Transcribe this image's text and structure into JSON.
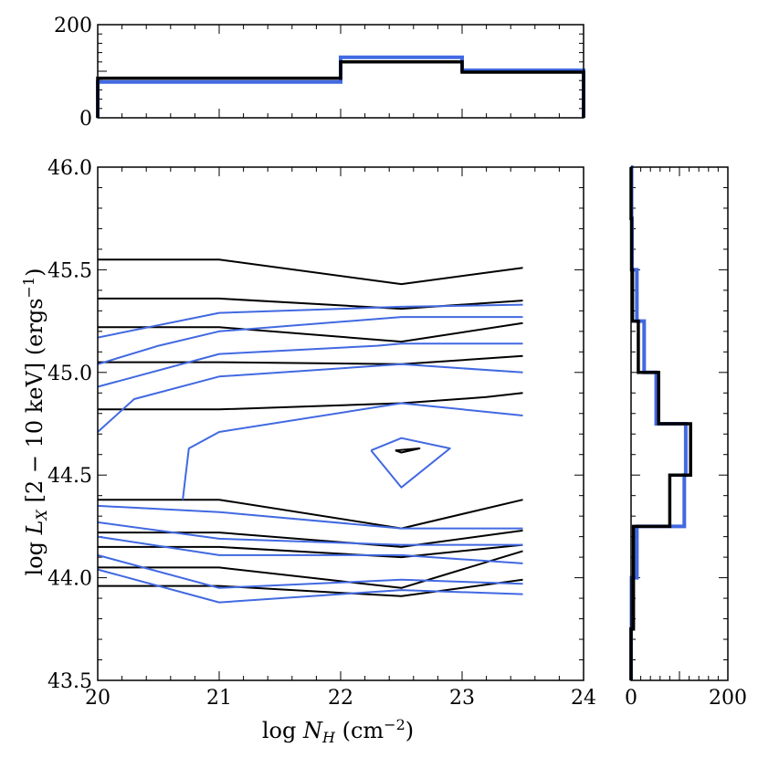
{
  "chart_data": [
    {
      "type": "step-histogram",
      "panel": "top",
      "x_edges": [
        20,
        22,
        23,
        24
      ],
      "ylim": [
        0,
        200
      ],
      "yticks": [
        "0",
        "200"
      ],
      "series": [
        {
          "name": "black",
          "color": "#000000",
          "counts": [
            85,
            120,
            98
          ]
        },
        {
          "name": "blue",
          "color": "#4169e1",
          "counts": [
            77,
            130,
            102
          ]
        }
      ]
    },
    {
      "type": "contour",
      "panel": "main",
      "xlabel": "log N_H (cm^-2)",
      "ylabel": "log L_X [2 - 10 keV] (erg s^-1)",
      "xlim": [
        20,
        24
      ],
      "ylim": [
        43.5,
        46.0
      ],
      "xticks": [
        "20",
        "21",
        "22",
        "23",
        "24"
      ],
      "yticks": [
        "43.5",
        "44.0",
        "44.5",
        "45.0",
        "45.5",
        "46.0"
      ],
      "series": [
        {
          "name": "black",
          "color": "#000000",
          "lines": [
            [
              [
                20,
                45.55
              ],
              [
                21,
                45.55
              ],
              [
                22.5,
                45.43
              ],
              [
                23.5,
                45.51
              ]
            ],
            [
              [
                20,
                45.36
              ],
              [
                21,
                45.36
              ],
              [
                22.5,
                45.31
              ],
              [
                23.5,
                45.35
              ]
            ],
            [
              [
                20,
                45.22
              ],
              [
                21,
                45.22
              ],
              [
                22.5,
                45.15
              ],
              [
                23.5,
                45.24
              ]
            ],
            [
              [
                20,
                45.05
              ],
              [
                21,
                45.05
              ],
              [
                22.5,
                45.04
              ],
              [
                23.5,
                45.08
              ]
            ],
            [
              [
                20,
                44.82
              ],
              [
                21,
                44.82
              ],
              [
                22.5,
                44.85
              ],
              [
                23.2,
                44.88
              ],
              [
                23.5,
                44.9
              ]
            ],
            [
              [
                20,
                44.38
              ],
              [
                21,
                44.38
              ],
              [
                22.5,
                44.24
              ],
              [
                23.5,
                44.38
              ]
            ],
            [
              [
                20,
                44.22
              ],
              [
                21,
                44.22
              ],
              [
                22.5,
                44.15
              ],
              [
                23.5,
                44.23
              ]
            ],
            [
              [
                20,
                44.15
              ],
              [
                21,
                44.15
              ],
              [
                22.5,
                44.1
              ],
              [
                23.5,
                44.16
              ]
            ],
            [
              [
                20,
                44.05
              ],
              [
                21,
                44.05
              ],
              [
                22.5,
                43.95
              ],
              [
                23.5,
                44.13
              ]
            ],
            [
              [
                20,
                43.96
              ],
              [
                21,
                43.96
              ],
              [
                22.5,
                43.91
              ],
              [
                23.5,
                43.99
              ]
            ],
            [
              [
                22.45,
                44.62
              ],
              [
                22.65,
                44.63
              ],
              [
                22.5,
                44.61
              ],
              [
                22.45,
                44.62
              ]
            ]
          ]
        },
        {
          "name": "blue",
          "color": "#4169e1",
          "lines": [
            [
              [
                20,
                45.17
              ],
              [
                21,
                45.29
              ],
              [
                22.5,
                45.32
              ],
              [
                23.5,
                45.33
              ]
            ],
            [
              [
                20,
                45.04
              ],
              [
                20.5,
                45.13
              ],
              [
                21,
                45.2
              ],
              [
                22.5,
                45.27
              ],
              [
                23.5,
                45.27
              ]
            ],
            [
              [
                20,
                44.93
              ],
              [
                21,
                45.09
              ],
              [
                22.3,
                45.13
              ],
              [
                22.5,
                45.14
              ],
              [
                23.5,
                45.14
              ]
            ],
            [
              [
                20,
                44.71
              ],
              [
                20.3,
                44.87
              ],
              [
                21,
                44.98
              ],
              [
                22.5,
                45.04
              ],
              [
                23.5,
                45.0
              ]
            ],
            [
              [
                20.7,
                44.38
              ],
              [
                20.75,
                44.63
              ],
              [
                21,
                44.71
              ],
              [
                22.5,
                44.85
              ],
              [
                23.5,
                44.79
              ]
            ],
            [
              [
                20,
                44.35
              ],
              [
                21,
                44.32
              ],
              [
                22.5,
                44.24
              ],
              [
                23.5,
                44.24
              ]
            ],
            [
              [
                20,
                44.27
              ],
              [
                21,
                44.19
              ],
              [
                22.5,
                44.16
              ],
              [
                23.5,
                44.16
              ]
            ],
            [
              [
                20,
                44.2
              ],
              [
                21,
                44.11
              ],
              [
                22.5,
                44.11
              ],
              [
                23.5,
                44.07
              ]
            ],
            [
              [
                20,
                44.11
              ],
              [
                21,
                43.95
              ],
              [
                22.5,
                43.99
              ],
              [
                23.5,
                43.97
              ]
            ],
            [
              [
                20,
                44.04
              ],
              [
                21,
                43.88
              ],
              [
                22.5,
                43.94
              ],
              [
                23.5,
                43.92
              ]
            ],
            [
              [
                22.25,
                44.62
              ],
              [
                22.5,
                44.68
              ],
              [
                22.9,
                44.63
              ],
              [
                22.5,
                44.44
              ],
              [
                22.25,
                44.62
              ]
            ]
          ]
        }
      ]
    },
    {
      "type": "step-histogram",
      "panel": "right",
      "orientation": "horizontal",
      "y_edges": [
        43.5,
        43.75,
        44.0,
        44.25,
        44.5,
        44.75,
        45.0,
        45.25,
        45.5,
        45.75,
        46.0
      ],
      "xlim": [
        0,
        200
      ],
      "xticks": [
        "0",
        "200"
      ],
      "series": [
        {
          "name": "black",
          "color": "#000000",
          "counts": [
            0,
            5,
            5,
            80,
            123,
            57,
            15,
            3,
            1,
            0
          ]
        },
        {
          "name": "blue",
          "color": "#4169e1",
          "counts": [
            0,
            1,
            12,
            110,
            113,
            52,
            27,
            12,
            2,
            1
          ]
        }
      ]
    }
  ]
}
